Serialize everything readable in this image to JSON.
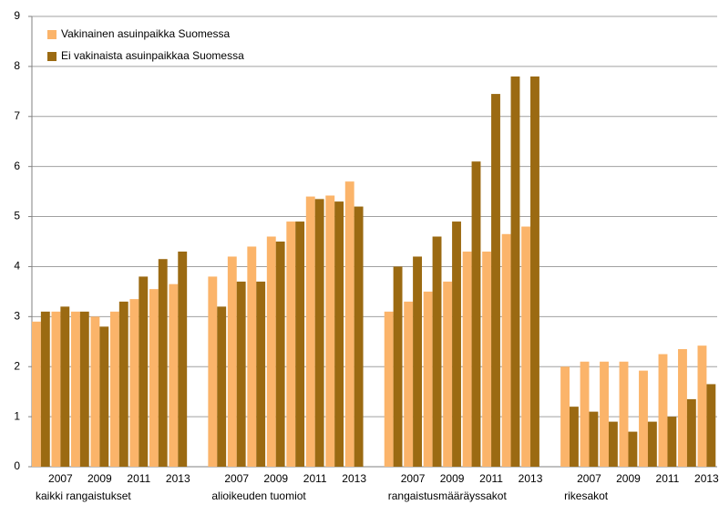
{
  "chart_data": {
    "type": "bar",
    "groups": [
      "kaikki rangaistukset",
      "alioikeuden tuomiot",
      "rangaistusmääräyssakot",
      "rikesakot"
    ],
    "categories": [
      null,
      "2007",
      null,
      "2009",
      null,
      "2011",
      null,
      "2013"
    ],
    "series": [
      {
        "name": "Vakinainen asuinpaikka Suomessa",
        "color": "#fbb46a",
        "values": [
          [
            2.9,
            3.1,
            3.1,
            3.0,
            3.1,
            3.35,
            3.55,
            3.65
          ],
          [
            3.8,
            4.2,
            4.4,
            4.6,
            4.9,
            5.4,
            5.42,
            5.7
          ],
          [
            3.1,
            3.3,
            3.5,
            3.7,
            4.3,
            4.3,
            4.65,
            4.8
          ],
          [
            2.0,
            2.1,
            2.1,
            2.1,
            1.92,
            2.25,
            2.35,
            2.42
          ]
        ]
      },
      {
        "name": "Ei vakinaista asuinpaikkaa Suomessa",
        "color": "#9b6a12",
        "values": [
          [
            3.1,
            3.2,
            3.1,
            2.8,
            3.3,
            3.8,
            4.15,
            4.3
          ],
          [
            3.2,
            3.7,
            3.7,
            4.5,
            4.9,
            5.35,
            5.3,
            5.2
          ],
          [
            4.0,
            4.2,
            4.6,
            4.9,
            6.1,
            7.45,
            7.8,
            7.8
          ],
          [
            1.2,
            1.1,
            0.9,
            0.7,
            0.9,
            1.0,
            1.35,
            1.65
          ]
        ]
      }
    ],
    "ylim": [
      0,
      9
    ],
    "yticks": [
      0,
      1,
      2,
      3,
      4,
      5,
      6,
      7,
      8,
      9
    ],
    "grid": true
  }
}
